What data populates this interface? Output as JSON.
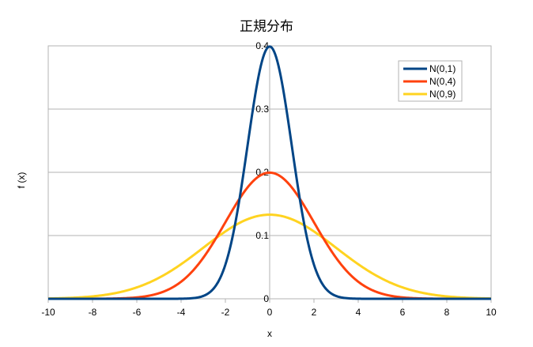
{
  "chart_data": {
    "type": "line",
    "title": "正規分布",
    "xlabel": "x",
    "ylabel": "f (x)",
    "xlim": [
      -10,
      10
    ],
    "ylim": [
      0,
      0.4
    ],
    "x_ticks": [
      -10,
      -8,
      -6,
      -4,
      -2,
      0,
      2,
      4,
      6,
      8,
      10
    ],
    "y_ticks": [
      0,
      0.1,
      0.2,
      0.3,
      0.4
    ],
    "grid": "horizontal",
    "legend_position": "top-right",
    "series": [
      {
        "name": "N(0,1)",
        "mean": 0,
        "variance": 1,
        "color": "#004586"
      },
      {
        "name": "N(0,4)",
        "mean": 0,
        "variance": 4,
        "color": "#ff420e"
      },
      {
        "name": "N(0,9)",
        "mean": 0,
        "variance": 9,
        "color": "#ffd320"
      }
    ]
  }
}
